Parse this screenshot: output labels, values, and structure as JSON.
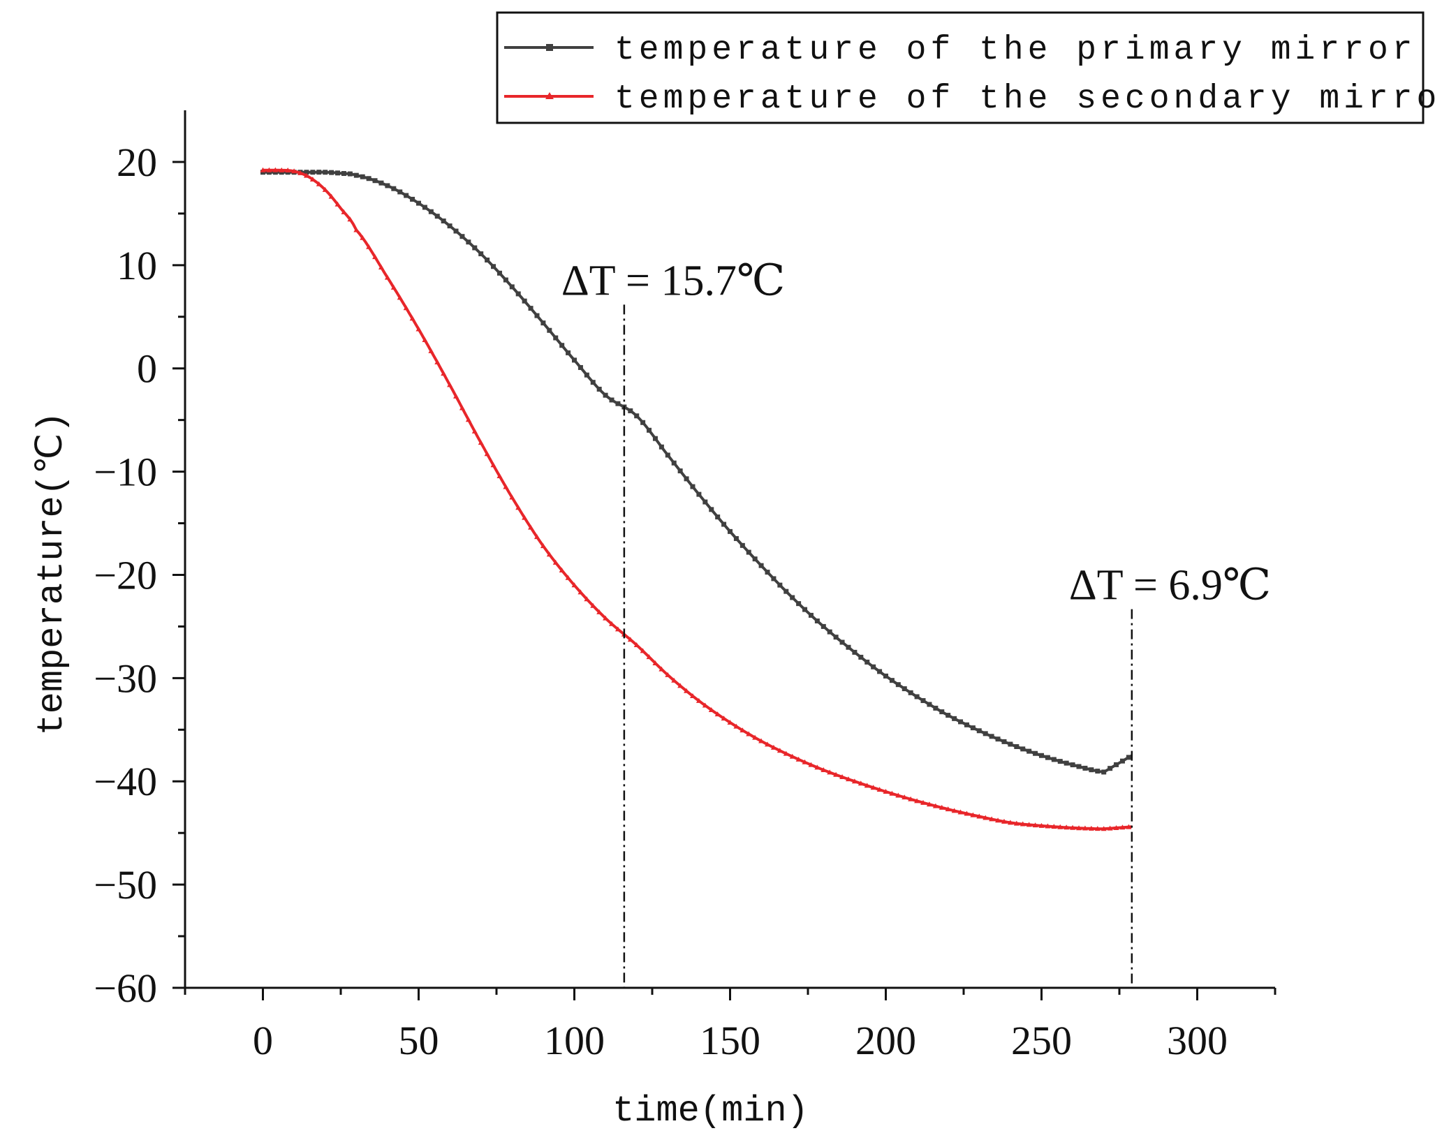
{
  "chart_data": {
    "type": "line",
    "title": "",
    "xlabel": "time(min)",
    "ylabel": "temperature(℃)",
    "xlim": [
      -25,
      325
    ],
    "ylim": [
      -60,
      25
    ],
    "xticks": [
      0,
      50,
      100,
      150,
      200,
      250,
      300
    ],
    "yticks": [
      20,
      10,
      0,
      -10,
      -20,
      -30,
      -40,
      -50,
      -60
    ],
    "legend_position": "top-right",
    "x": [
      0,
      5,
      10,
      15,
      20,
      25,
      30,
      40,
      50,
      60,
      70,
      80,
      90,
      100,
      110,
      116,
      120,
      130,
      140,
      150,
      160,
      170,
      180,
      190,
      200,
      210,
      220,
      230,
      240,
      250,
      260,
      270,
      279
    ],
    "series": [
      {
        "name": "temperature of the primary mirror",
        "color": "#404040",
        "marker": "square",
        "values": [
          19.0,
          19.0,
          19.0,
          19.0,
          19.0,
          18.9,
          18.7,
          17.7,
          16.0,
          13.8,
          11.1,
          7.9,
          4.4,
          0.8,
          -2.6,
          -2.7,
          -4.6,
          -8.4,
          -12.2,
          -15.8,
          -19.1,
          -22.2,
          -25.0,
          -27.5,
          -29.8,
          -31.8,
          -33.6,
          -35.1,
          -36.4,
          -37.5,
          -38.4,
          -39.1,
          -37.5
        ]
      },
      {
        "name": "temperature of the secondary mirror",
        "color": "#e8262a",
        "marker": "triangle",
        "values": [
          19.2,
          19.2,
          19.1,
          18.5,
          17.3,
          15.5,
          13.4,
          8.8,
          3.8,
          -1.6,
          -7.2,
          -12.5,
          -17.2,
          -21.0,
          -24.2,
          -18.4,
          -26.8,
          -29.7,
          -32.2,
          -34.3,
          -36.1,
          -37.6,
          -38.9,
          -40.0,
          -41.0,
          -41.9,
          -42.7,
          -43.4,
          -44.0,
          -44.3,
          -44.5,
          -44.6,
          -44.4
        ]
      }
    ],
    "annotations": [
      {
        "label": "ΔT = 15.7℃",
        "x": 116
      },
      {
        "label": "ΔT = 6.9℃",
        "x": 279
      }
    ]
  }
}
